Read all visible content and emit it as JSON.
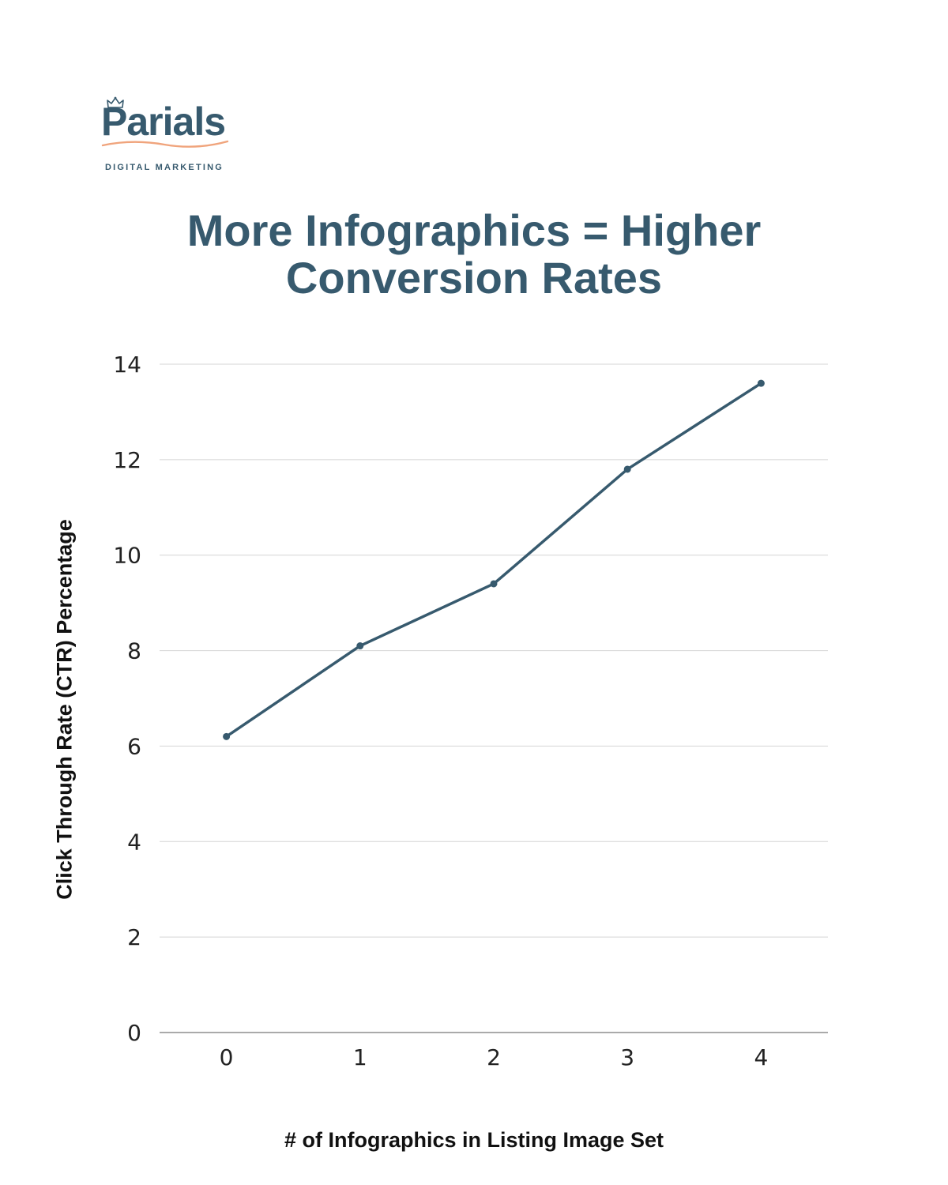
{
  "brand": {
    "name": "Parials",
    "tagline": "DIGITAL MARKETING",
    "primary_color": "#375a6e",
    "accent_color": "#f0a47c"
  },
  "chart_data": {
    "type": "line",
    "title": "More Infographics = Higher Conversion Rates",
    "title_lines": [
      "More Infographics = Higher",
      "Conversion Rates"
    ],
    "xlabel": "# of Infographics in Listing Image Set",
    "ylabel": "Click Through Rate (CTR) Percentage",
    "categories": [
      "0",
      "1",
      "2",
      "3",
      "4"
    ],
    "series": [
      {
        "name": "CTR",
        "values": [
          6.2,
          8.1,
          9.4,
          11.8,
          13.6
        ],
        "color": "#375a6e"
      }
    ],
    "ylim": [
      0,
      14
    ],
    "yticks": [
      "0",
      "2",
      "4",
      "6",
      "8",
      "10",
      "12",
      "14"
    ],
    "grid": true,
    "legend": "none"
  }
}
